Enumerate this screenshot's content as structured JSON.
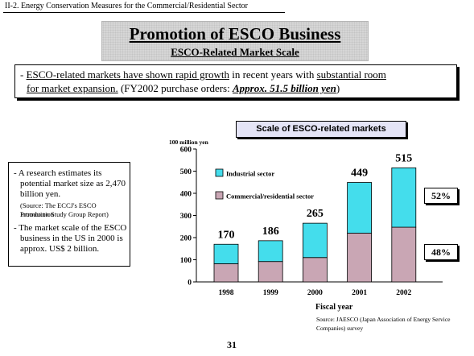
{
  "header": {
    "section": "II-2. Energy Conservation Measures for the Commercial/Residential Sector",
    "title": "Promotion of ESCO Business",
    "subtitle": "ESCO-Related Market Scale"
  },
  "summary": {
    "line1_prefix": "- ",
    "line1_u1": "ESCO-related markets have shown rapid growth",
    "line1_mid": " in recent years with ",
    "line1_u2": "substantial room",
    "line2_u": "for  market expansion.",
    "line2_mid": "  (FY2002 purchase orders:  ",
    "line2_em": "Approx. 51.5 billion yen",
    "line2_end": ")"
  },
  "notes": {
    "item1": [
      "- A research estimates its",
      "potential market size as 2,470",
      "billion yen."
    ],
    "source1": [
      "(Source: The ECCJ's ESCO Introduction",
      "Promotion Study Group Report)"
    ],
    "item2": [
      "- The market scale of the ESCO",
      "business in the US in 2000 is",
      "approx. US$ 2 billion."
    ]
  },
  "chart_caption": "Scale of ESCO-related markets",
  "source_note": "Source: JAESCO (Japan Association of Energy Service Companies) survey",
  "page_number": "31",
  "chart_data": {
    "type": "bar",
    "stacked": true,
    "title": "Scale of ESCO-related markets",
    "unit_label": "100 million yen",
    "xlabel": "Fiscal year",
    "ylabel": "100 million yen",
    "categories": [
      "1998",
      "1999",
      "2000",
      "2001",
      "2002"
    ],
    "ylim": [
      0,
      600
    ],
    "yticks": [
      0,
      100,
      200,
      300,
      400,
      500,
      600
    ],
    "totals": [
      170,
      186,
      265,
      449,
      515
    ],
    "series": [
      {
        "name": "Commercial/residential sector",
        "color": "#c9a6b4",
        "values": [
          82,
          92,
          110,
          220,
          247
        ]
      },
      {
        "name": "Industrial sector",
        "color": "#44ddec",
        "values": [
          88,
          94,
          155,
          229,
          268
        ]
      }
    ],
    "share_labels": [
      {
        "series": "Industrial sector",
        "text": "52%"
      },
      {
        "series": "Commercial/residential sector",
        "text": "48%"
      }
    ],
    "grid": false,
    "legend_position": "inside top-left"
  }
}
